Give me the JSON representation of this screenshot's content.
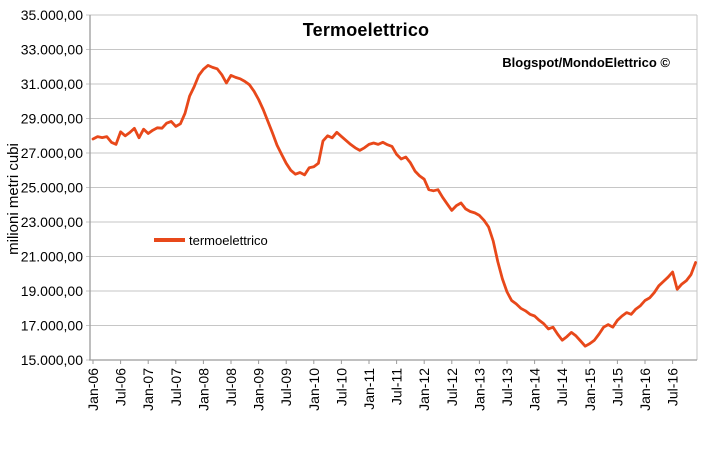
{
  "title": "Termoelettrico",
  "attribution": "Blogspot/MondoElettrico ©",
  "legend": {
    "label": "termoelettrico"
  },
  "y_axis": {
    "title": "milioni metri cubi",
    "labels": [
      "35.000,00",
      "33.000,00",
      "31.000,00",
      "29.000,00",
      "27.000,00",
      "25.000,00",
      "23.000,00",
      "21.000,00",
      "19.000,00",
      "17.000,00",
      "15.000,00"
    ]
  },
  "x_axis": {
    "labels": [
      "Jan-06",
      "Jul-06",
      "Jan-07",
      "Jul-07",
      "Jan-08",
      "Jul-08",
      "Jan-09",
      "Jul-09",
      "Jan-10",
      "Jul-10",
      "Jan-11",
      "Jul-11",
      "Jan-12",
      "Jul-12",
      "Jan-13",
      "Jul-13",
      "Jan-14",
      "Jul-14",
      "Jan-15",
      "Jul-15",
      "Jan-16",
      "Jul-16"
    ]
  },
  "colors": {
    "line": "#E8481A",
    "grid": "#C6C6C6",
    "axis": "#9B9B9B",
    "text": "#000000",
    "background": "#FFFFFF"
  },
  "chart_data": {
    "type": "line",
    "title": "Termoelettrico",
    "xlabel": "",
    "ylabel": "milioni metri cubi",
    "ylim": [
      15000,
      35000
    ],
    "y_tick_step": 2000,
    "y_tick_labels": [
      "35.000,00",
      "33.000,00",
      "31.000,00",
      "29.000,00",
      "27.000,00",
      "25.000,00",
      "23.000,00",
      "21.000,00",
      "19.000,00",
      "17.000,00",
      "15.000,00"
    ],
    "x_tick_labels": [
      "Jan-06",
      "Jul-06",
      "Jan-07",
      "Jul-07",
      "Jan-08",
      "Jul-08",
      "Jan-09",
      "Jul-09",
      "Jan-10",
      "Jul-10",
      "Jan-11",
      "Jul-11",
      "Jan-12",
      "Jul-12",
      "Jan-13",
      "Jul-13",
      "Jan-14",
      "Jul-14",
      "Jan-15",
      "Jul-15",
      "Jan-16",
      "Jul-16"
    ],
    "x_start": "Jan-06",
    "x_end": "Dec-16",
    "frequency": "monthly",
    "grid": true,
    "legend_position": "middle-left",
    "annotations": [
      "Blogspot/MondoElettrico ©"
    ],
    "series": [
      {
        "name": "termoelettrico",
        "color": "#E8481A",
        "values": [
          27810,
          27950,
          27890,
          27950,
          27620,
          27500,
          28230,
          28000,
          28190,
          28430,
          27880,
          28380,
          28130,
          28320,
          28460,
          28440,
          28730,
          28830,
          28540,
          28690,
          29300,
          30300,
          30850,
          31500,
          31850,
          32080,
          31960,
          31880,
          31540,
          31060,
          31500,
          31380,
          31300,
          31150,
          30960,
          30580,
          30100,
          29520,
          28850,
          28170,
          27460,
          26920,
          26400,
          26000,
          25770,
          25870,
          25730,
          26150,
          26200,
          26400,
          27700,
          28000,
          27880,
          28200,
          27960,
          27730,
          27500,
          27300,
          27150,
          27300,
          27500,
          27580,
          27500,
          27620,
          27480,
          27380,
          26920,
          26650,
          26770,
          26430,
          25950,
          25670,
          25480,
          24870,
          24810,
          24870,
          24430,
          24050,
          23670,
          23950,
          24100,
          23760,
          23610,
          23530,
          23380,
          23100,
          22710,
          21900,
          20700,
          19700,
          18950,
          18450,
          18250,
          18000,
          17850,
          17650,
          17550,
          17300,
          17100,
          16800,
          16900,
          16500,
          16150,
          16350,
          16600,
          16400,
          16100,
          15800,
          15950,
          16150,
          16500,
          16900,
          17050,
          16900,
          17300,
          17550,
          17750,
          17650,
          17950,
          18150,
          18450,
          18600,
          18900,
          19300,
          19550,
          19800,
          20100,
          19100,
          19400,
          19600,
          19950,
          20650
        ]
      }
    ]
  }
}
